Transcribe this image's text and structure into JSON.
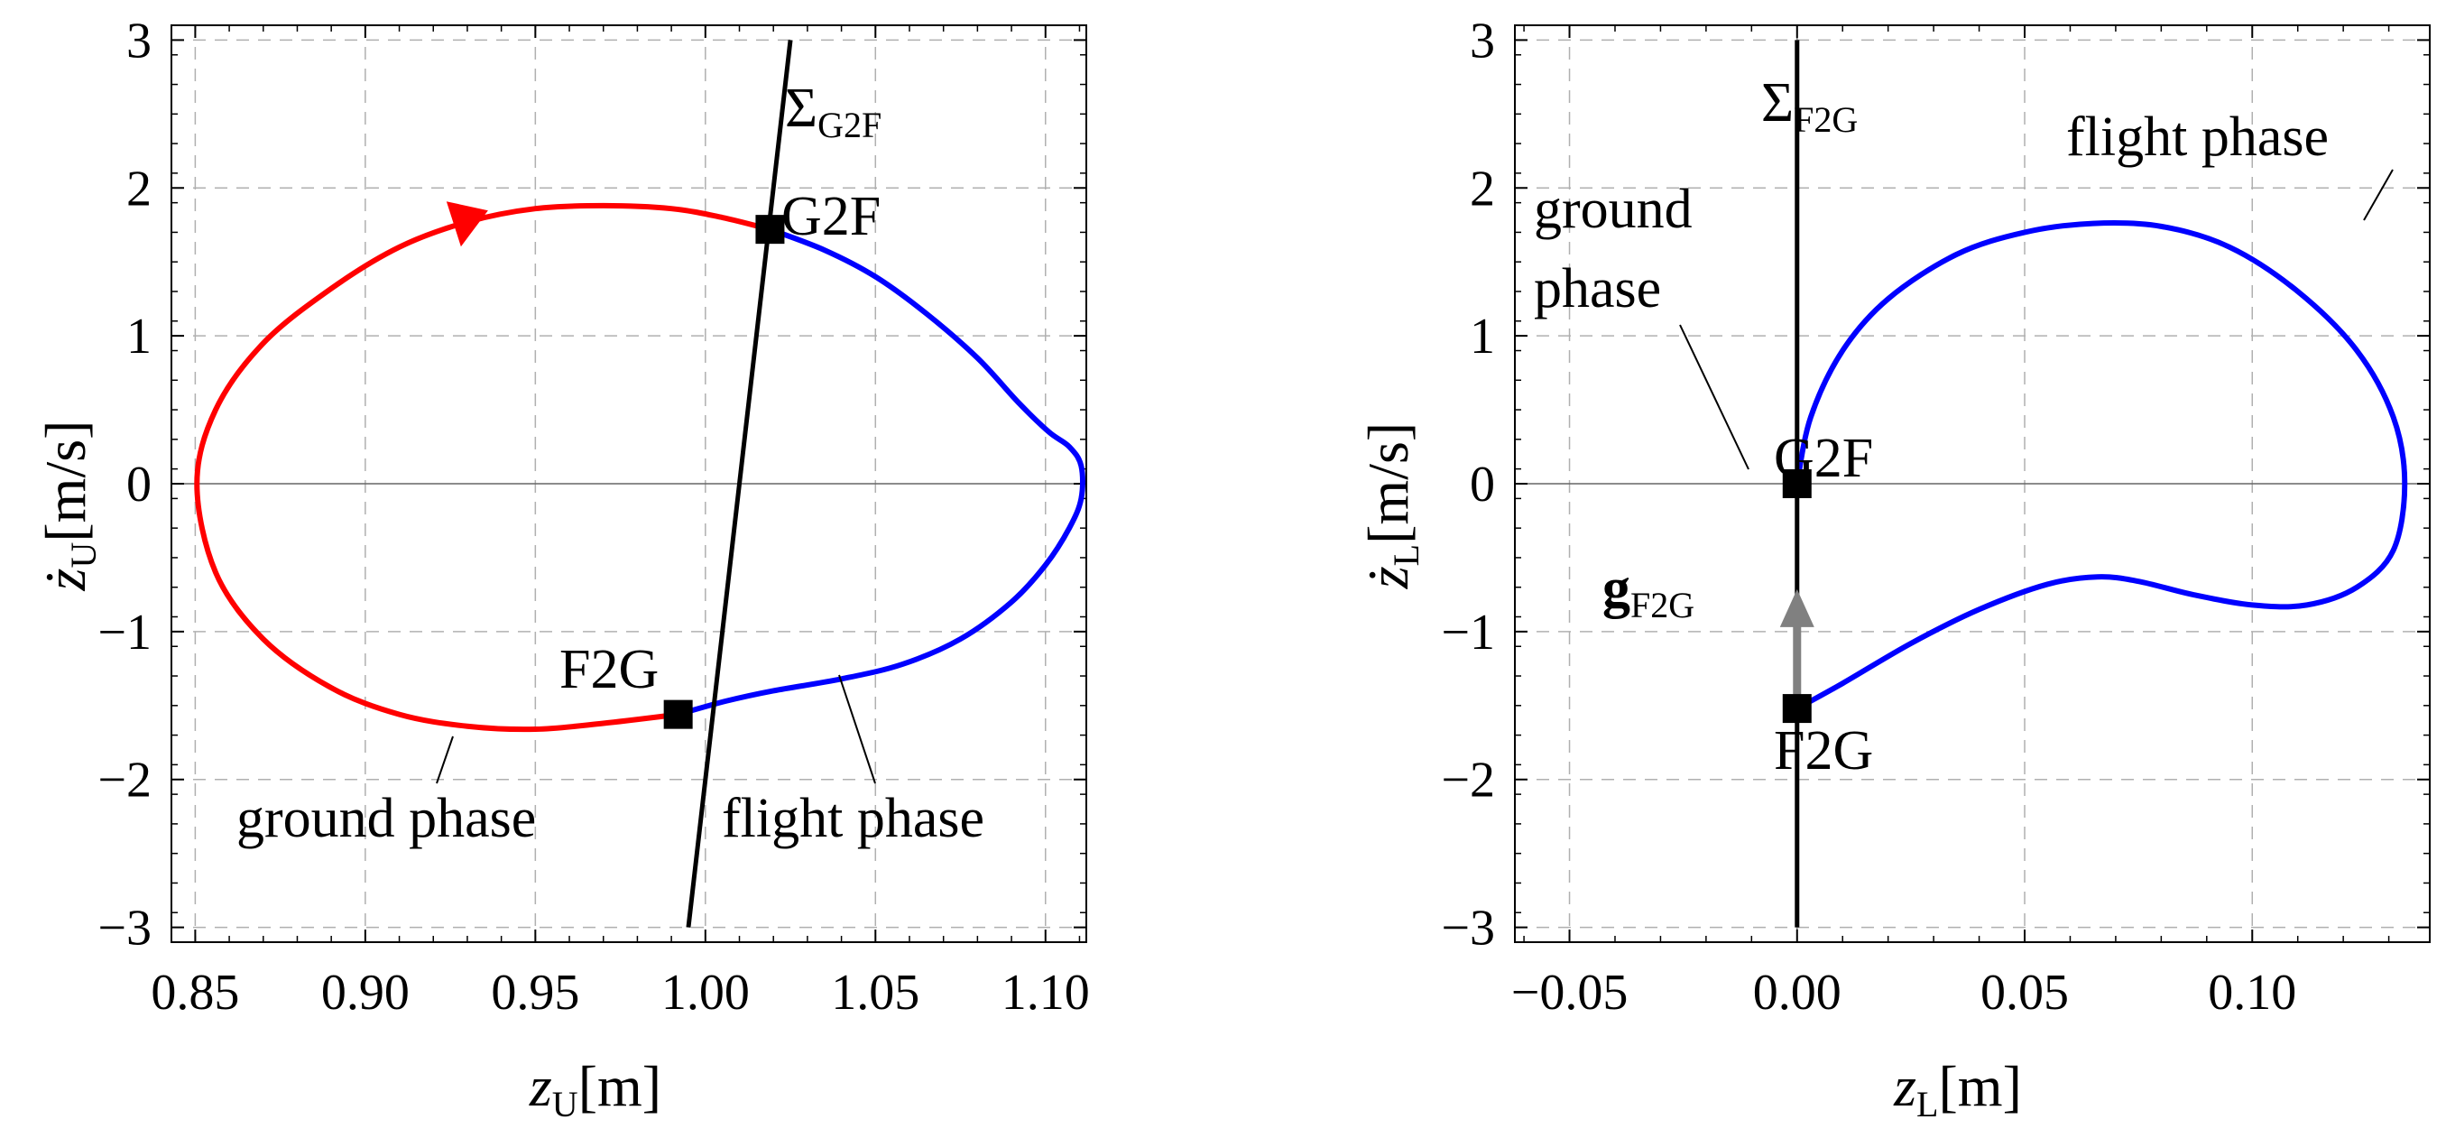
{
  "chart_data": [
    {
      "type": "line",
      "xlabel": {
        "var": "z",
        "sub": "U",
        "unit": "[m]"
      },
      "ylabel": {
        "var": "ż",
        "sub": "U",
        "unit": "[m/s]"
      },
      "xlim": [
        0.843,
        1.112
      ],
      "ylim": [
        -3.1,
        3.1
      ],
      "x_ticks": [
        0.85,
        0.9,
        0.95,
        1.0,
        1.05,
        1.1
      ],
      "x_tick_labels": [
        "0.85",
        "0.90",
        "0.95",
        "1.00",
        "1.05",
        "1.10"
      ],
      "y_ticks": [
        -3,
        -2,
        -1,
        0,
        1,
        2,
        3
      ],
      "y_tick_labels": [
        "−3",
        "−2",
        "−1",
        "0",
        "1",
        "2",
        "3"
      ],
      "grid": true,
      "series": [
        {
          "name": "ground phase",
          "color": "#ff0000",
          "points": [
            [
              0.992,
              -1.56
            ],
            [
              0.97,
              -1.62
            ],
            [
              0.95,
              -1.66
            ],
            [
              0.93,
              -1.64
            ],
            [
              0.91,
              -1.56
            ],
            [
              0.89,
              -1.38
            ],
            [
              0.87,
              -1.05
            ],
            [
              0.856,
              -0.6
            ],
            [
              0.8505,
              0.0
            ],
            [
              0.856,
              0.5
            ],
            [
              0.87,
              0.95
            ],
            [
              0.89,
              1.32
            ],
            [
              0.91,
              1.6
            ],
            [
              0.93,
              1.77
            ],
            [
              0.95,
              1.86
            ],
            [
              0.97,
              1.88
            ],
            [
              0.99,
              1.86
            ],
            [
              1.005,
              1.8
            ],
            [
              1.019,
              1.72
            ]
          ]
        },
        {
          "name": "flight phase",
          "color": "#0000ff",
          "points": [
            [
              1.019,
              1.72
            ],
            [
              1.035,
              1.58
            ],
            [
              1.05,
              1.4
            ],
            [
              1.065,
              1.15
            ],
            [
              1.08,
              0.85
            ],
            [
              1.092,
              0.55
            ],
            [
              1.101,
              0.35
            ],
            [
              1.107,
              0.25
            ],
            [
              1.1105,
              0.12
            ],
            [
              1.1105,
              -0.1
            ],
            [
              1.107,
              -0.3
            ],
            [
              1.1,
              -0.55
            ],
            [
              1.09,
              -0.8
            ],
            [
              1.075,
              -1.05
            ],
            [
              1.058,
              -1.22
            ],
            [
              1.04,
              -1.32
            ],
            [
              1.02,
              -1.4
            ],
            [
              1.006,
              -1.47
            ],
            [
              0.992,
              -1.56
            ]
          ]
        },
        {
          "name": "Σ_G2F",
          "color": "#000000",
          "points": [
            [
              0.995,
              -3.0
            ],
            [
              1.025,
              3.0
            ]
          ]
        }
      ],
      "markers": [
        {
          "label": "G2F",
          "x": 1.019,
          "y": 1.72
        },
        {
          "label": "F2G",
          "x": 0.992,
          "y": -1.56
        }
      ],
      "annotations": {
        "surface_main": "Σ",
        "surface_sub": "G2F",
        "g2f": "G2F",
        "f2g": "F2G",
        "ground_phase": "ground phase",
        "flight_phase": "flight phase"
      },
      "arrow": {
        "x": 0.926,
        "y": 1.75,
        "color": "#ff0000"
      }
    },
    {
      "type": "line",
      "xlabel": {
        "var": "z",
        "sub": "L",
        "unit": "[m]"
      },
      "ylabel": {
        "var": "ż",
        "sub": "L",
        "unit": "[m/s]"
      },
      "xlim": [
        -0.062,
        0.139
      ],
      "ylim": [
        -3.1,
        3.1
      ],
      "x_ticks": [
        -0.05,
        0.0,
        0.05,
        0.1
      ],
      "x_tick_labels": [
        "−0.05",
        "0.00",
        "0.05",
        "0.10"
      ],
      "y_ticks": [
        -3,
        -2,
        -1,
        0,
        1,
        2,
        3
      ],
      "y_tick_labels": [
        "−3",
        "−2",
        "−1",
        "0",
        "1",
        "2",
        "3"
      ],
      "grid": true,
      "series": [
        {
          "name": "flight phase",
          "color": "#0000ff",
          "points": [
            [
              0.0,
              0.0
            ],
            [
              0.003,
              0.45
            ],
            [
              0.01,
              0.9
            ],
            [
              0.02,
              1.25
            ],
            [
              0.035,
              1.55
            ],
            [
              0.05,
              1.7
            ],
            [
              0.065,
              1.76
            ],
            [
              0.08,
              1.74
            ],
            [
              0.095,
              1.6
            ],
            [
              0.11,
              1.3
            ],
            [
              0.123,
              0.9
            ],
            [
              0.131,
              0.45
            ],
            [
              0.1335,
              0.0
            ],
            [
              0.131,
              -0.45
            ],
            [
              0.123,
              -0.7
            ],
            [
              0.112,
              -0.82
            ],
            [
              0.1,
              -0.82
            ],
            [
              0.087,
              -0.75
            ],
            [
              0.075,
              -0.66
            ],
            [
              0.066,
              -0.63
            ],
            [
              0.055,
              -0.68
            ],
            [
              0.04,
              -0.85
            ],
            [
              0.025,
              -1.08
            ],
            [
              0.01,
              -1.35
            ],
            [
              0.0,
              -1.52
            ]
          ]
        },
        {
          "name": "Σ_F2G",
          "color": "#000000",
          "points": [
            [
              0.0,
              -3.0
            ],
            [
              0.0,
              3.0
            ]
          ]
        }
      ],
      "markers": [
        {
          "label": "G2F",
          "x": 0.0,
          "y": 0.0
        },
        {
          "label": "F2G",
          "x": 0.0,
          "y": -1.52
        }
      ],
      "vector": {
        "from": [
          0.0,
          -1.52
        ],
        "to": [
          0.0,
          -0.75
        ],
        "color": "#808080"
      },
      "annotations": {
        "surface_main": "Σ",
        "surface_sub": "F2G",
        "g2f": "G2F",
        "f2g": "F2G",
        "ground_phase_line1": "ground",
        "ground_phase_line2": "phase",
        "flight_phase": "flight phase",
        "vector_main": "g",
        "vector_sub": "F2G"
      }
    }
  ]
}
